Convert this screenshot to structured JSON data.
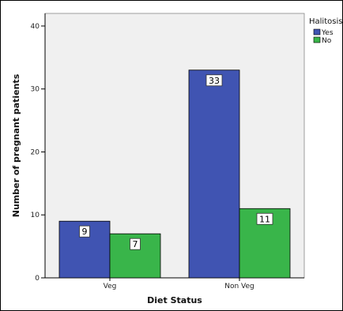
{
  "chart_data": {
    "type": "bar",
    "title": "",
    "xlabel": "Diet Status",
    "ylabel": "Number of pregnant patients",
    "categories": [
      "Veg",
      "Non Veg"
    ],
    "series": [
      {
        "name": "Yes",
        "color": "#4054b2",
        "values": [
          9,
          33
        ]
      },
      {
        "name": "No",
        "color": "#39b54a",
        "values": [
          7,
          11
        ]
      }
    ],
    "ylim": [
      0,
      42
    ],
    "yticks": [
      0,
      10,
      20,
      30,
      40
    ],
    "legend": {
      "title": "Halitosis",
      "position": "top-right"
    },
    "grid": false,
    "plot_background": "#f0f0f0",
    "data_labels": true
  }
}
